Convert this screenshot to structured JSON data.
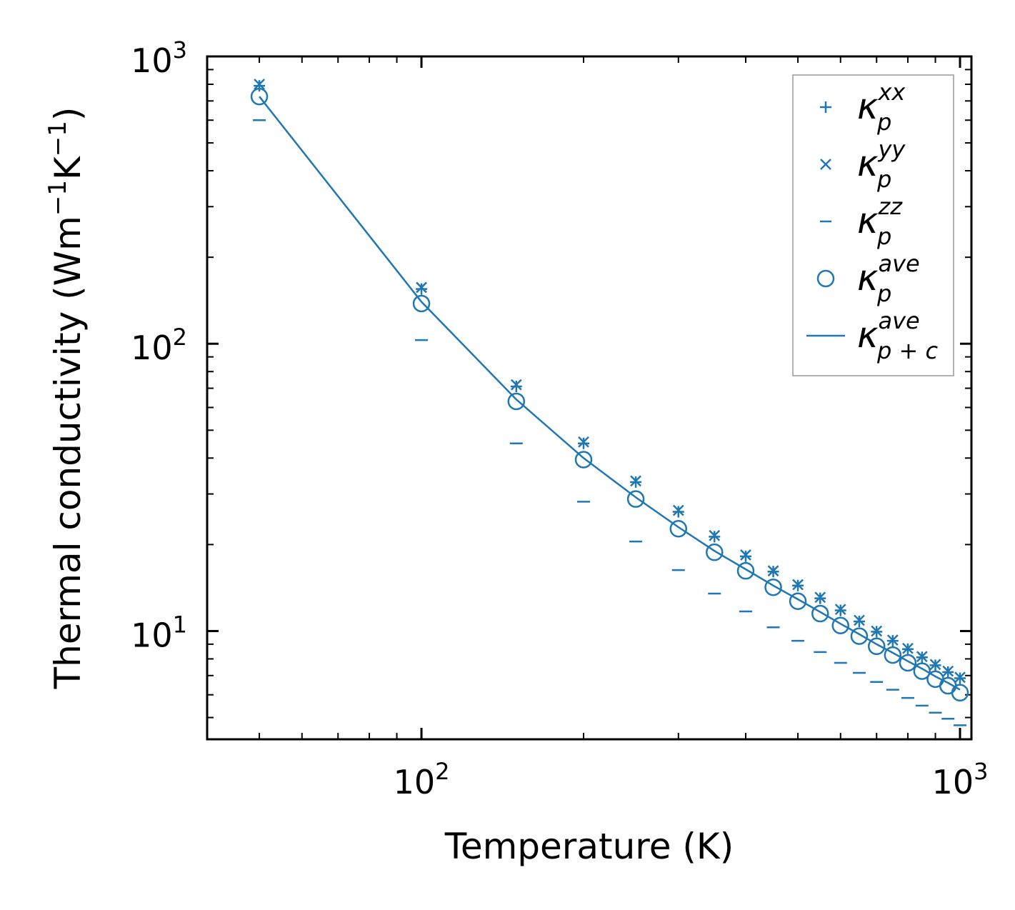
{
  "chart_data": {
    "type": "scatter",
    "xscale": "log",
    "yscale": "log",
    "xlabel": "Temperature (K)",
    "ylabel": {
      "base": "Thermal conductivity (Wm",
      "exp1": "−1",
      "mid": "K",
      "exp2": "−1",
      "end": ")"
    },
    "xlim": [
      40,
      1050
    ],
    "ylim": [
      4.2,
      1000
    ],
    "xticks": [
      {
        "value": 100,
        "base": "10",
        "exp": "2"
      },
      {
        "value": 1000,
        "base": "10",
        "exp": "3"
      }
    ],
    "yticks": [
      {
        "value": 10,
        "base": "10",
        "exp": "1"
      },
      {
        "value": 100,
        "base": "10",
        "exp": "2"
      },
      {
        "value": 1000,
        "base": "10",
        "exp": "3"
      }
    ],
    "color": "#1f77b4",
    "x": [
      50,
      100,
      150,
      200,
      250,
      300,
      350,
      400,
      450,
      500,
      550,
      600,
      650,
      700,
      750,
      800,
      850,
      900,
      950,
      1000
    ],
    "series": [
      {
        "name": "kappa_p_xx",
        "marker": "plus",
        "values": [
          790,
          155,
          71,
          45,
          33,
          26,
          21.3,
          18.2,
          16.1,
          14.4,
          13.0,
          11.8,
          10.8,
          9.95,
          9.25,
          8.65,
          8.1,
          7.6,
          7.2,
          6.85
        ]
      },
      {
        "name": "kappa_p_yy",
        "marker": "x",
        "values": [
          800,
          157,
          72,
          45.5,
          33.3,
          26.3,
          21.5,
          18.4,
          16.2,
          14.5,
          13.1,
          11.9,
          10.9,
          10.0,
          9.3,
          8.7,
          8.15,
          7.65,
          7.25,
          6.9
        ]
      },
      {
        "name": "kappa_p_zz",
        "marker": "hline",
        "values": [
          600,
          103,
          45,
          28.2,
          20.5,
          16.3,
          13.5,
          11.7,
          10.3,
          9.25,
          8.45,
          7.75,
          7.15,
          6.65,
          6.25,
          5.85,
          5.5,
          5.2,
          4.95,
          4.7
        ]
      },
      {
        "name": "kappa_p_ave",
        "marker": "circle",
        "values": [
          725,
          138,
          63,
          39.5,
          28.8,
          22.7,
          18.8,
          16.2,
          14.2,
          12.7,
          11.5,
          10.45,
          9.6,
          8.85,
          8.25,
          7.75,
          7.25,
          6.8,
          6.45,
          6.1
        ]
      },
      {
        "name": "kappa_pc_ave",
        "marker": "line",
        "values": [
          725,
          140,
          64,
          40,
          29.2,
          23.0,
          19.0,
          16.4,
          14.4,
          12.9,
          11.65,
          10.6,
          9.75,
          9.0,
          8.4,
          7.85,
          7.4,
          6.95,
          6.6,
          6.25
        ]
      }
    ],
    "legend": {
      "position": "top-right",
      "entries": [
        {
          "symbol": "+",
          "main": "κ",
          "sub": "p",
          "sup": "xx"
        },
        {
          "symbol": "×",
          "main": "κ",
          "sub": "p",
          "sup": "yy"
        },
        {
          "symbol": "−",
          "main": "κ",
          "sub": "p",
          "sup": "zz"
        },
        {
          "symbol": "○",
          "main": "κ",
          "sub": "p",
          "sup": "ave"
        },
        {
          "symbol": "—",
          "main": "κ",
          "sub": "p + c",
          "sup": "ave"
        }
      ]
    }
  }
}
